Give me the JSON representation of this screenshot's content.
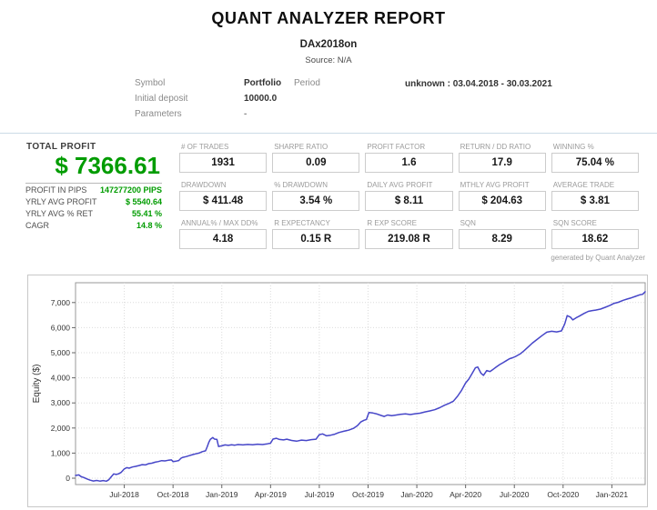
{
  "header": {
    "title": "QUANT ANALYZER REPORT",
    "subtitle": "DAx2018on",
    "source": "Source: N/A"
  },
  "info": {
    "symbol_label": "Symbol",
    "symbol_value": "Portfolio",
    "period_label": "Period",
    "period_value": "unknown : 03.04.2018 - 30.03.2021",
    "deposit_label": "Initial deposit",
    "deposit_value": "10000.0",
    "parameters_label": "Parameters",
    "parameters_value": "-"
  },
  "profit_panel": {
    "title": "TOTAL PROFIT",
    "total": "$ 7366.61",
    "rows": [
      {
        "label": "PROFIT IN PIPS",
        "value": "147277200 PIPS"
      },
      {
        "label": "YRLY AVG PROFIT",
        "value": "$ 5540.64"
      },
      {
        "label": "YRLY AVG % RET",
        "value": "55.41 %"
      },
      {
        "label": "CAGR",
        "value": "14.8 %"
      }
    ]
  },
  "stats": {
    "rows": [
      [
        {
          "label": "# OF TRADES",
          "value": "1931"
        },
        {
          "label": "SHARPE RATIO",
          "value": "0.09"
        },
        {
          "label": "PROFIT FACTOR",
          "value": "1.6"
        },
        {
          "label": "RETURN / DD RATIO",
          "value": "17.9"
        },
        {
          "label": "WINNING %",
          "value": "75.04 %"
        }
      ],
      [
        {
          "label": "DRAWDOWN",
          "value": "$ 411.48"
        },
        {
          "label": "% DRAWDOWN",
          "value": "3.54 %"
        },
        {
          "label": "DAILY AVG PROFIT",
          "value": "$ 8.11"
        },
        {
          "label": "MTHLY AVG PROFIT",
          "value": "$ 204.63"
        },
        {
          "label": "AVERAGE TRADE",
          "value": "$ 3.81"
        }
      ],
      [
        {
          "label": "ANNUAL% / MAX DD%",
          "value": "4.18"
        },
        {
          "label": "R EXPECTANCY",
          "value": "0.15 R"
        },
        {
          "label": "R EXP SCORE",
          "value": "219.08 R"
        },
        {
          "label": "SQN",
          "value": "8.29"
        },
        {
          "label": "SQN SCORE",
          "value": "18.62"
        }
      ]
    ]
  },
  "footer_note": "generated by Quant Analyzer",
  "colors": {
    "profit_green": "#009c00",
    "curve_blue": "#4646c8",
    "grid_gray": "#dcdcdc",
    "axis_gray": "#999999",
    "label_gray": "#9b9b9b",
    "separator_blue": "#ccdbe6"
  },
  "chart_data": {
    "type": "line",
    "title": "",
    "xlabel": "",
    "ylabel": "Equity ($)",
    "x_unit": "months since 2018-04-01",
    "xlim": [
      0,
      35.05
    ],
    "ylim": [
      -253,
      7790
    ],
    "grid": true,
    "legend": "none",
    "line_color": "#4646c8",
    "x_ticks": [
      {
        "m": 3,
        "label": "Jul-2018"
      },
      {
        "m": 6,
        "label": "Oct-2018"
      },
      {
        "m": 9,
        "label": "Jan-2019"
      },
      {
        "m": 12,
        "label": "Apr-2019"
      },
      {
        "m": 15,
        "label": "Jul-2019"
      },
      {
        "m": 18,
        "label": "Oct-2019"
      },
      {
        "m": 21,
        "label": "Jan-2020"
      },
      {
        "m": 24,
        "label": "Apr-2020"
      },
      {
        "m": 27,
        "label": "Jul-2020"
      },
      {
        "m": 30,
        "label": "Oct-2020"
      },
      {
        "m": 33,
        "label": "Jan-2021"
      }
    ],
    "y_ticks": [
      {
        "v": 0,
        "label": "0"
      },
      {
        "v": 1000,
        "label": "1,000"
      },
      {
        "v": 2000,
        "label": "2,000"
      },
      {
        "v": 3000,
        "label": "3,000"
      },
      {
        "v": 4000,
        "label": "4,000"
      },
      {
        "v": 5000,
        "label": "5,000"
      },
      {
        "v": 6000,
        "label": "6,000"
      },
      {
        "v": 7000,
        "label": "7,000"
      }
    ],
    "series": [
      {
        "name": "Equity",
        "points": [
          [
            0,
            110
          ],
          [
            0.2,
            130
          ],
          [
            0.35,
            60
          ],
          [
            0.5,
            30
          ],
          [
            0.7,
            -30
          ],
          [
            0.9,
            -80
          ],
          [
            1.1,
            -110
          ],
          [
            1.3,
            -90
          ],
          [
            1.5,
            -115
          ],
          [
            1.7,
            -95
          ],
          [
            1.9,
            -120
          ],
          [
            2.05,
            -60
          ],
          [
            2.2,
            60
          ],
          [
            2.35,
            170
          ],
          [
            2.5,
            150
          ],
          [
            2.65,
            175
          ],
          [
            2.8,
            230
          ],
          [
            3,
            370
          ],
          [
            3.15,
            420
          ],
          [
            3.3,
            400
          ],
          [
            3.5,
            445
          ],
          [
            3.7,
            470
          ],
          [
            3.9,
            505
          ],
          [
            4.1,
            540
          ],
          [
            4.3,
            530
          ],
          [
            4.5,
            580
          ],
          [
            4.7,
            600
          ],
          [
            4.9,
            640
          ],
          [
            5.1,
            665
          ],
          [
            5.3,
            700
          ],
          [
            5.5,
            690
          ],
          [
            5.7,
            715
          ],
          [
            5.9,
            730
          ],
          [
            6,
            660
          ],
          [
            6.2,
            680
          ],
          [
            6.35,
            705
          ],
          [
            6.5,
            800
          ],
          [
            6.6,
            830
          ],
          [
            6.8,
            860
          ],
          [
            7,
            900
          ],
          [
            7.2,
            940
          ],
          [
            7.4,
            970
          ],
          [
            7.6,
            1000
          ],
          [
            7.8,
            1060
          ],
          [
            8,
            1090
          ],
          [
            8.1,
            1250
          ],
          [
            8.2,
            1430
          ],
          [
            8.3,
            1550
          ],
          [
            8.45,
            1620
          ],
          [
            8.55,
            1560
          ],
          [
            8.7,
            1545
          ],
          [
            8.8,
            1260
          ],
          [
            9,
            1290
          ],
          [
            9.2,
            1325
          ],
          [
            9.4,
            1310
          ],
          [
            9.6,
            1330
          ],
          [
            9.8,
            1315
          ],
          [
            10,
            1340
          ],
          [
            10.3,
            1325
          ],
          [
            10.6,
            1345
          ],
          [
            10.9,
            1330
          ],
          [
            11.2,
            1355
          ],
          [
            11.5,
            1340
          ],
          [
            11.8,
            1370
          ],
          [
            12,
            1395
          ],
          [
            12.15,
            1560
          ],
          [
            12.35,
            1590
          ],
          [
            12.55,
            1545
          ],
          [
            12.8,
            1525
          ],
          [
            13,
            1555
          ],
          [
            13.3,
            1505
          ],
          [
            13.6,
            1475
          ],
          [
            13.9,
            1520
          ],
          [
            14.2,
            1500
          ],
          [
            14.5,
            1535
          ],
          [
            14.8,
            1555
          ],
          [
            15,
            1735
          ],
          [
            15.2,
            1765
          ],
          [
            15.45,
            1690
          ],
          [
            15.7,
            1715
          ],
          [
            15.95,
            1755
          ],
          [
            16.2,
            1820
          ],
          [
            16.5,
            1870
          ],
          [
            16.8,
            1915
          ],
          [
            17.1,
            1985
          ],
          [
            17.35,
            2100
          ],
          [
            17.55,
            2240
          ],
          [
            17.75,
            2310
          ],
          [
            17.9,
            2340
          ],
          [
            18.05,
            2620
          ],
          [
            18.3,
            2600
          ],
          [
            18.55,
            2560
          ],
          [
            18.8,
            2500
          ],
          [
            19,
            2460
          ],
          [
            19.2,
            2520
          ],
          [
            19.45,
            2490
          ],
          [
            19.7,
            2515
          ],
          [
            20,
            2545
          ],
          [
            20.3,
            2565
          ],
          [
            20.6,
            2535
          ],
          [
            20.9,
            2570
          ],
          [
            21.2,
            2590
          ],
          [
            21.5,
            2640
          ],
          [
            21.8,
            2680
          ],
          [
            22.1,
            2730
          ],
          [
            22.4,
            2810
          ],
          [
            22.7,
            2905
          ],
          [
            23,
            2985
          ],
          [
            23.25,
            3070
          ],
          [
            23.5,
            3260
          ],
          [
            23.75,
            3500
          ],
          [
            24,
            3790
          ],
          [
            24.2,
            3950
          ],
          [
            24.4,
            4170
          ],
          [
            24.6,
            4400
          ],
          [
            24.75,
            4430
          ],
          [
            24.95,
            4180
          ],
          [
            25.1,
            4100
          ],
          [
            25.3,
            4290
          ],
          [
            25.5,
            4250
          ],
          [
            25.7,
            4340
          ],
          [
            25.9,
            4440
          ],
          [
            26.1,
            4530
          ],
          [
            26.3,
            4600
          ],
          [
            26.5,
            4680
          ],
          [
            26.7,
            4760
          ],
          [
            26.9,
            4800
          ],
          [
            27.1,
            4860
          ],
          [
            27.35,
            4950
          ],
          [
            27.6,
            5080
          ],
          [
            27.85,
            5230
          ],
          [
            28.1,
            5380
          ],
          [
            28.4,
            5530
          ],
          [
            28.7,
            5680
          ],
          [
            29,
            5820
          ],
          [
            29.3,
            5855
          ],
          [
            29.6,
            5830
          ],
          [
            29.9,
            5870
          ],
          [
            30.1,
            6150
          ],
          [
            30.25,
            6480
          ],
          [
            30.45,
            6420
          ],
          [
            30.6,
            6310
          ],
          [
            30.8,
            6390
          ],
          [
            31,
            6460
          ],
          [
            31.3,
            6570
          ],
          [
            31.55,
            6650
          ],
          [
            31.8,
            6680
          ],
          [
            32,
            6700
          ],
          [
            32.3,
            6740
          ],
          [
            32.6,
            6810
          ],
          [
            32.9,
            6890
          ],
          [
            33.1,
            6960
          ],
          [
            33.4,
            7010
          ],
          [
            33.7,
            7090
          ],
          [
            33.95,
            7140
          ],
          [
            34.2,
            7190
          ],
          [
            34.45,
            7245
          ],
          [
            34.7,
            7305
          ],
          [
            34.9,
            7330
          ],
          [
            35.05,
            7430
          ]
        ]
      }
    ]
  }
}
